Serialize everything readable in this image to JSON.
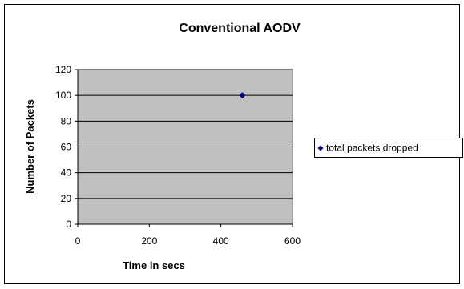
{
  "chart_data": {
    "type": "scatter",
    "title": "Conventional AODV",
    "xlabel": "Time in secs",
    "ylabel": "Number of  Packets",
    "xlim": [
      0,
      600
    ],
    "ylim": [
      0,
      120
    ],
    "x_ticks": [
      0,
      200,
      400,
      600
    ],
    "y_ticks": [
      0,
      20,
      40,
      60,
      80,
      100,
      120
    ],
    "x_tick_labels": [
      "0",
      "200",
      "400",
      "600"
    ],
    "y_tick_labels": [
      "0",
      "20",
      "40",
      "60",
      "80",
      "100",
      "120"
    ],
    "grid": "horizontal",
    "plot_background": "#c0c0c0",
    "legend_position": "right",
    "series": [
      {
        "name": "total packets dropped",
        "color": "#000080",
        "marker": "diamond",
        "points": [
          {
            "x": 460,
            "y": 100
          }
        ]
      }
    ]
  }
}
